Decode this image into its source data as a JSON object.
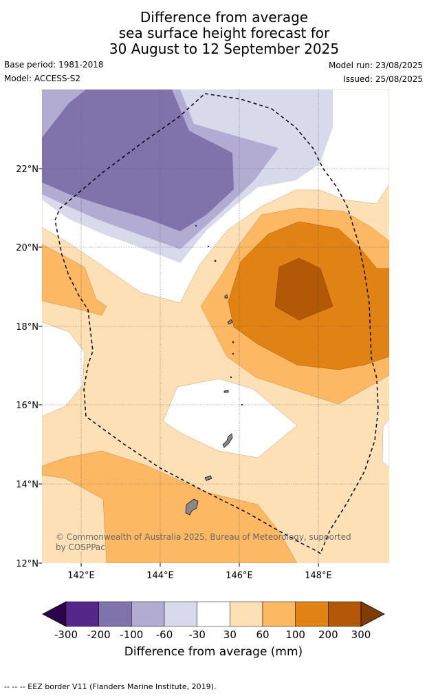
{
  "header": {
    "title_lines": [
      "Difference from average",
      "sea surface height forecast for",
      "30 August to 12 September 2025"
    ],
    "base_period": "Base period: 1981-2018",
    "model": "Model: ACCESS-S2",
    "model_run": "Model run: 23/08/2025",
    "issued": "Issued: 25/08/2025"
  },
  "map": {
    "lon_ticks": [
      "142°E",
      "144°E",
      "146°E",
      "148°E"
    ],
    "lat_ticks": [
      "22°N",
      "20°N",
      "18°N",
      "16°N",
      "14°N",
      "12°N"
    ],
    "copyright_lines": [
      "© Commonwealth of Australia 2025, Bureau of Meteorology, supported",
      "by COSPPac"
    ],
    "colors": {
      "land": "#888888",
      "eez_border": "#000000"
    }
  },
  "colorbar": {
    "label": "Difference from average (mm)",
    "ticks": [
      "-300",
      "-200",
      "-100",
      "-60",
      "-30",
      "30",
      "60",
      "100",
      "200",
      "300"
    ],
    "colors": [
      "#2d004b",
      "#542788",
      "#8073ac",
      "#b2abd2",
      "#d8daeb",
      "#ffffff",
      "#fee0b6",
      "#fdb863",
      "#e08214",
      "#b35806",
      "#7f3b08"
    ]
  },
  "footer": {
    "note": "--  --  -- EEZ border V11 (Flanders Marine Institute, 2019)."
  }
}
